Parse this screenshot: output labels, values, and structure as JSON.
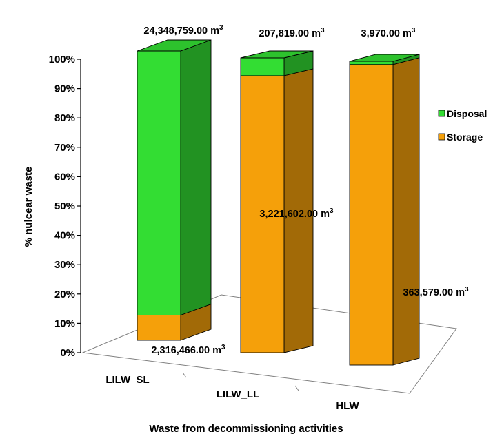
{
  "chart_data": {
    "type": "bar",
    "stacked": "percent",
    "projection": "3d",
    "categories": [
      "LILW_SL",
      "LILW_LL",
      "HLW"
    ],
    "series": [
      {
        "name": "Storage",
        "values": [
          2316466.0,
          3221602.0,
          363579.0
        ],
        "color": "#f5a00a"
      },
      {
        "name": "Disposal",
        "values": [
          24348759.0,
          207819.0,
          3970.0
        ],
        "color": "#33dd33"
      }
    ],
    "ylabel": "% nulcear waste",
    "xlabel": "Waste from decommissioning activities",
    "ylim": [
      0,
      100
    ],
    "yticks": [
      "0%",
      "10%",
      "20%",
      "30%",
      "40%",
      "50%",
      "60%",
      "70%",
      "80%",
      "90%",
      "100%"
    ],
    "data_labels": [
      {
        "text": "24,348,759.00 m",
        "sup": "3"
      },
      {
        "text": "207,819.00 m",
        "sup": "3"
      },
      {
        "text": "3,970.00 m",
        "sup": "3"
      },
      {
        "text": "2,316,466.00 m",
        "sup": "3"
      },
      {
        "text": "3,221,602.00 m",
        "sup": "3"
      },
      {
        "text": "363,579.00 m",
        "sup": "3"
      }
    ],
    "legend": {
      "position": "right",
      "entries": [
        "Disposal",
        "Storage"
      ]
    },
    "grid": false
  }
}
